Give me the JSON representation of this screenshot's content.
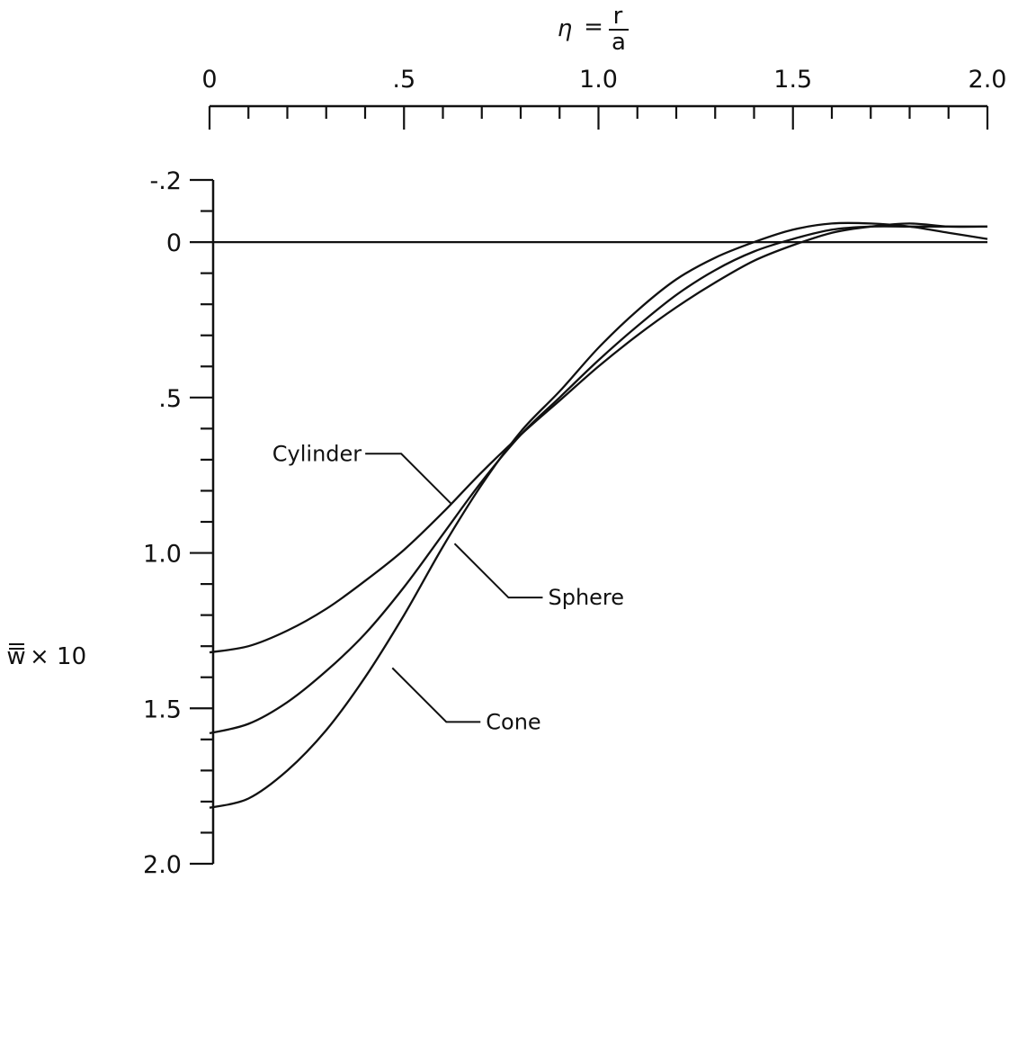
{
  "chart_data": {
    "type": "line",
    "title": "",
    "xlabel": {
      "symbol": "η",
      "equals": "=",
      "numerator": "r",
      "denominator": "a"
    },
    "ylabel": {
      "main": "w",
      "suffix": "× 10"
    },
    "x_axis": {
      "position": "top",
      "range": [
        0,
        2.0
      ],
      "tick_labels": [
        "0",
        ".5",
        "1.0",
        "1.5",
        "2.0"
      ],
      "tick_values": [
        0,
        0.5,
        1.0,
        1.5,
        2.0
      ],
      "minor_step": 0.1
    },
    "y_axis": {
      "inverted": true,
      "range": [
        -0.2,
        2.0
      ],
      "tick_labels": [
        "-.2",
        "0",
        ".5",
        "1.0",
        "1.5",
        "2.0"
      ],
      "tick_values": [
        -0.2,
        0,
        0.5,
        1.0,
        1.5,
        2.0
      ],
      "minor_step": 0.1
    },
    "zero_line": true,
    "series": [
      {
        "name": "Cylinder",
        "x": [
          0,
          0.1,
          0.2,
          0.3,
          0.4,
          0.5,
          0.6,
          0.7,
          0.8,
          0.9,
          1.0,
          1.1,
          1.2,
          1.3,
          1.4,
          1.5,
          1.6,
          1.7,
          1.8,
          1.9,
          2.0
        ],
        "y": [
          1.32,
          1.3,
          1.25,
          1.18,
          1.09,
          0.99,
          0.87,
          0.74,
          0.62,
          0.51,
          0.4,
          0.3,
          0.21,
          0.13,
          0.06,
          0.01,
          -0.03,
          -0.05,
          -0.06,
          -0.05,
          -0.05
        ]
      },
      {
        "name": "Sphere",
        "x": [
          0,
          0.1,
          0.2,
          0.3,
          0.4,
          0.5,
          0.6,
          0.7,
          0.8,
          0.9,
          1.0,
          1.1,
          1.2,
          1.3,
          1.4,
          1.5,
          1.6,
          1.7,
          1.8,
          1.9,
          2.0
        ],
        "y": [
          1.58,
          1.55,
          1.48,
          1.38,
          1.26,
          1.11,
          0.94,
          0.77,
          0.62,
          0.5,
          0.38,
          0.27,
          0.17,
          0.09,
          0.03,
          -0.01,
          -0.04,
          -0.05,
          -0.05,
          -0.05,
          -0.05
        ]
      },
      {
        "name": "Cone",
        "x": [
          0,
          0.1,
          0.2,
          0.3,
          0.4,
          0.5,
          0.6,
          0.7,
          0.8,
          0.9,
          1.0,
          1.1,
          1.2,
          1.3,
          1.4,
          1.5,
          1.6,
          1.7,
          1.8,
          1.9,
          2.0
        ],
        "y": [
          1.82,
          1.79,
          1.7,
          1.57,
          1.4,
          1.2,
          0.98,
          0.78,
          0.61,
          0.48,
          0.34,
          0.22,
          0.12,
          0.05,
          0.0,
          -0.04,
          -0.06,
          -0.06,
          -0.05,
          -0.03,
          -0.01
        ]
      }
    ],
    "annotations": [
      {
        "label": "Cylinder",
        "series": "Cylinder",
        "point": [
          0.62,
          0.84
        ],
        "label_side": "left"
      },
      {
        "label": "Sphere",
        "series": "Sphere",
        "point": [
          0.63,
          0.97
        ],
        "label_side": "right"
      },
      {
        "label": "Cone",
        "series": "Cone",
        "point": [
          0.47,
          1.37
        ],
        "label_side": "right"
      }
    ]
  }
}
